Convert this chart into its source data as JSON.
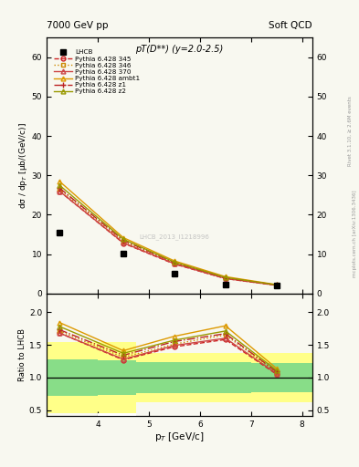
{
  "title_center": "pT(D**) (y=2.0-2.5)",
  "top_left": "7000 GeV pp",
  "top_right": "Soft QCD",
  "right_label1": "Rivet 3.1.10, ≥ 2.6M events",
  "right_label2": "mcplots.cern.ch [arXiv:1306.3436]",
  "watermark": "LHCB_2013_I1218996",
  "xlabel": "p$_T$ [GeV/c]",
  "ylabel_main": "dσ / dp$_T$ [μb/(GeV/c)]",
  "ylabel_ratio": "Ratio to LHCB",
  "xlim": [
    3.0,
    8.2
  ],
  "main_ylim": [
    0,
    65
  ],
  "ratio_ylim": [
    0.42,
    2.28
  ],
  "pt_lhcb": [
    3.25,
    4.5,
    5.5,
    6.5,
    7.5
  ],
  "val_lhcb": [
    15.5,
    10.1,
    5.1,
    2.4,
    2.0
  ],
  "pt_mc": [
    3.25,
    4.5,
    5.5,
    6.5,
    7.5
  ],
  "val_345": [
    26.0,
    12.8,
    7.5,
    3.8,
    2.1
  ],
  "val_346": [
    26.5,
    13.2,
    7.7,
    3.95,
    2.15
  ],
  "val_370": [
    26.0,
    12.9,
    7.6,
    3.85,
    2.12
  ],
  "val_ambt1": [
    28.5,
    14.2,
    8.3,
    4.3,
    2.28
  ],
  "val_z1": [
    26.8,
    13.5,
    7.9,
    4.0,
    2.18
  ],
  "val_z2": [
    27.5,
    13.8,
    8.0,
    4.1,
    2.22
  ],
  "ratio_345": [
    1.68,
    1.27,
    1.47,
    1.58,
    1.05
  ],
  "ratio_346": [
    1.71,
    1.31,
    1.51,
    1.65,
    1.075
  ],
  "ratio_370": [
    1.68,
    1.28,
    1.49,
    1.6,
    1.06
  ],
  "ratio_ambt1": [
    1.84,
    1.41,
    1.63,
    1.79,
    1.14
  ],
  "ratio_z1": [
    1.73,
    1.34,
    1.55,
    1.67,
    1.09
  ],
  "ratio_z2": [
    1.78,
    1.37,
    1.57,
    1.71,
    1.11
  ],
  "color_345": "#cc2222",
  "color_346": "#cc8800",
  "color_370": "#cc4444",
  "color_ambt1": "#dd9900",
  "color_z1": "#bb2222",
  "color_z2": "#999900",
  "bg_color": "#f8f8f0"
}
